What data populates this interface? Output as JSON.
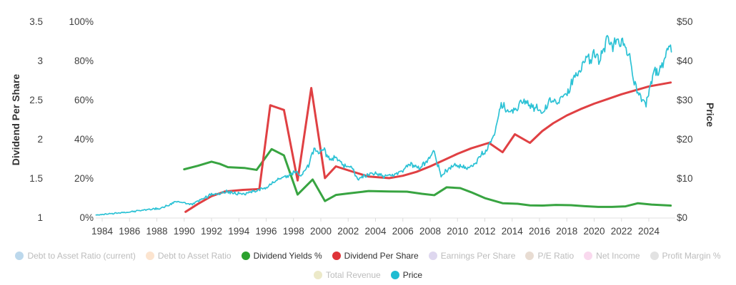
{
  "colors": {
    "background": "#ffffff",
    "axis_line": "#e0e0e0",
    "tick_mark": "#dcdcdc",
    "tick_text": "#3f3f3f",
    "axis_title_text": "#333333",
    "legend_active_text": "#303030",
    "legend_inactive_text": "#bcbcbc",
    "dividend_yields": "#38a441",
    "dividend_per_share": "#e04043",
    "price": "#2cc2d5"
  },
  "chart_data": {
    "type": "line",
    "title": "",
    "grid": "off",
    "x_axis": {
      "range": [
        1983.55,
        2025.75
      ],
      "tick_years": [
        1984,
        1986,
        1988,
        1990,
        1992,
        1994,
        1996,
        1998,
        2000,
        2002,
        2004,
        2006,
        2008,
        2010,
        2012,
        2014,
        2016,
        2018,
        2020,
        2022,
        2024
      ]
    },
    "y_axis_dividend": {
      "title": "Dividend Per Share",
      "side": "left",
      "range": [
        1,
        3.5
      ],
      "tick_values": [
        1,
        1.5,
        2,
        2.5,
        3,
        3.5
      ],
      "tick_labels": [
        "1",
        "1.5",
        "2",
        "2.5",
        "3",
        "3.5"
      ]
    },
    "y_axis_percent": {
      "title": "",
      "side": "left",
      "range": [
        0,
        100
      ],
      "tick_values": [
        0,
        20,
        40,
        60,
        80,
        100
      ],
      "tick_labels": [
        "0%",
        "20%",
        "40%",
        "60%",
        "80%",
        "100%"
      ]
    },
    "y_axis_price": {
      "title": "Price",
      "side": "right",
      "range": [
        0,
        50
      ],
      "tick_values": [
        0,
        10,
        20,
        30,
        40,
        50
      ],
      "tick_labels": [
        "$0",
        "$10",
        "$20",
        "$30",
        "$40",
        "$50"
      ]
    },
    "series": [
      {
        "name": "Dividend Yields %",
        "axis": "percent",
        "color": "#38a441",
        "width": 3,
        "noisy": false,
        "points": [
          [
            1990,
            24.5
          ],
          [
            1991,
            26.3
          ],
          [
            1992,
            28.4
          ],
          [
            1992.6,
            27.3
          ],
          [
            1993.2,
            25.6
          ],
          [
            1994.4,
            25.2
          ],
          [
            1995.3,
            24.2
          ],
          [
            1996.4,
            34.8
          ],
          [
            1997.3,
            31.6
          ],
          [
            1998.3,
            11.6
          ],
          [
            1999.4,
            19.3
          ],
          [
            2000.3,
            8.3
          ],
          [
            2001.1,
            11.4
          ],
          [
            2002,
            12.2
          ],
          [
            2003.5,
            13.4
          ],
          [
            2005,
            13.2
          ],
          [
            2006.3,
            13.1
          ],
          [
            2007.4,
            12.0
          ],
          [
            2008.3,
            11.3
          ],
          [
            2009.2,
            15.3
          ],
          [
            2010.2,
            14.9
          ],
          [
            2011,
            12.8
          ],
          [
            2012,
            9.8
          ],
          [
            2013.3,
            7.2
          ],
          [
            2014.4,
            6.9
          ],
          [
            2015.3,
            6.1
          ],
          [
            2016.2,
            6.0
          ],
          [
            2017.2,
            6.3
          ],
          [
            2018.3,
            6.2
          ],
          [
            2019.3,
            5.7
          ],
          [
            2020.3,
            5.3
          ],
          [
            2021.3,
            5.3
          ],
          [
            2022.3,
            5.6
          ],
          [
            2023.2,
            7.2
          ],
          [
            2024.2,
            6.5
          ],
          [
            2025.6,
            6.0
          ]
        ]
      },
      {
        "name": "Dividend Per Share",
        "axis": "dividend",
        "color": "#e04043",
        "width": 3,
        "noisy": false,
        "points": [
          [
            1990.1,
            1.07
          ],
          [
            1991,
            1.17
          ],
          [
            1992,
            1.27
          ],
          [
            1993,
            1.33
          ],
          [
            1994.3,
            1.35
          ],
          [
            1995.5,
            1.36
          ],
          [
            1996.3,
            2.43
          ],
          [
            1997.3,
            2.37
          ],
          [
            1998.3,
            1.47
          ],
          [
            1999.3,
            2.65
          ],
          [
            2000.3,
            1.5
          ],
          [
            2001.1,
            1.65
          ],
          [
            2002,
            1.6
          ],
          [
            2003.5,
            1.52
          ],
          [
            2005,
            1.5
          ],
          [
            2006,
            1.53
          ],
          [
            2007,
            1.58
          ],
          [
            2008,
            1.65
          ],
          [
            2009,
            1.73
          ],
          [
            2010,
            1.81
          ],
          [
            2011,
            1.88
          ],
          [
            2012.3,
            1.95
          ],
          [
            2013.3,
            1.83
          ],
          [
            2014.2,
            2.06
          ],
          [
            2015.3,
            1.95
          ],
          [
            2016.2,
            2.1
          ],
          [
            2017,
            2.2
          ],
          [
            2018,
            2.3
          ],
          [
            2019,
            2.38
          ],
          [
            2020,
            2.45
          ],
          [
            2021,
            2.51
          ],
          [
            2022,
            2.57
          ],
          [
            2023,
            2.62
          ],
          [
            2024,
            2.67
          ],
          [
            2025.6,
            2.72
          ]
        ]
      },
      {
        "name": "Price",
        "axis": "price",
        "color": "#2cc2d5",
        "width": 1.7,
        "noisy": true,
        "points": [
          [
            1983.55,
            0.6
          ],
          [
            1984,
            0.7
          ],
          [
            1985,
            1.0
          ],
          [
            1986,
            1.35
          ],
          [
            1987,
            1.9
          ],
          [
            1987.6,
            2.1
          ],
          [
            1988.2,
            2.3
          ],
          [
            1988.8,
            3.0
          ],
          [
            1989.4,
            4.0
          ],
          [
            1990,
            3.7
          ],
          [
            1990.6,
            3.3
          ],
          [
            1991.2,
            4.5
          ],
          [
            1992,
            5.8
          ],
          [
            1992.6,
            6.2
          ],
          [
            1993.1,
            6.6
          ],
          [
            1993.7,
            6.1
          ],
          [
            1994.3,
            5.9
          ],
          [
            1995,
            6.6
          ],
          [
            1995.8,
            7.3
          ],
          [
            1996.4,
            8.5
          ],
          [
            1997,
            9.8
          ],
          [
            1997.6,
            10.8
          ],
          [
            1998.2,
            11.6
          ],
          [
            1998.6,
            10.4
          ],
          [
            1999.1,
            13.2
          ],
          [
            1999.5,
            17.0
          ],
          [
            1999.9,
            16.4
          ],
          [
            2000.2,
            17.2
          ],
          [
            2000.7,
            14.6
          ],
          [
            2001.1,
            15.3
          ],
          [
            2001.7,
            13.2
          ],
          [
            2002.2,
            12.9
          ],
          [
            2002.7,
            9.7
          ],
          [
            2003.2,
            10.8
          ],
          [
            2004,
            11.2
          ],
          [
            2004.6,
            10.4
          ],
          [
            2005.3,
            10.8
          ],
          [
            2006,
            12.2
          ],
          [
            2006.6,
            13.6
          ],
          [
            2007.2,
            12.6
          ],
          [
            2007.9,
            14.8
          ],
          [
            2008.3,
            16.8
          ],
          [
            2008.8,
            10.6
          ],
          [
            2009.3,
            12.2
          ],
          [
            2010,
            13.4
          ],
          [
            2010.7,
            12.6
          ],
          [
            2011.2,
            13.4
          ],
          [
            2011.8,
            16.2
          ],
          [
            2012.2,
            17.6
          ],
          [
            2012.7,
            21.4
          ],
          [
            2013.2,
            28.8
          ],
          [
            2013.8,
            26.8
          ],
          [
            2014.5,
            28.4
          ],
          [
            2015,
            29.6
          ],
          [
            2015.6,
            28.0
          ],
          [
            2016.2,
            26.9
          ],
          [
            2016.7,
            29.4
          ],
          [
            2017.3,
            29.8
          ],
          [
            2017.9,
            31.0
          ],
          [
            2018.4,
            34.4
          ],
          [
            2019,
            38.2
          ],
          [
            2019.6,
            40.6
          ],
          [
            2020.1,
            41.8
          ],
          [
            2020.4,
            39.8
          ],
          [
            2020.9,
            45.2
          ],
          [
            2021.3,
            43.2
          ],
          [
            2021.7,
            45.4
          ],
          [
            2022.2,
            44.0
          ],
          [
            2022.6,
            40.6
          ],
          [
            2023,
            34.5
          ],
          [
            2023.4,
            30.4
          ],
          [
            2023.8,
            28.6
          ],
          [
            2024.1,
            33.4
          ],
          [
            2024.4,
            38.2
          ],
          [
            2024.7,
            36.4
          ],
          [
            2025.1,
            40.2
          ],
          [
            2025.4,
            43.4
          ],
          [
            2025.65,
            42.2
          ]
        ]
      }
    ]
  },
  "legend": {
    "rows": [
      [
        {
          "label": "Debt to Asset Ratio (current)",
          "color": "#bcd8ec",
          "active": false
        },
        {
          "label": "Debt to Asset Ratio",
          "color": "#fce4cf",
          "active": false
        },
        {
          "label": "Dividend Yields %",
          "color": "#2ba12e",
          "active": true
        },
        {
          "label": "Dividend Per Share",
          "color": "#df3338",
          "active": true
        },
        {
          "label": "Earnings Per Share",
          "color": "#ded7ef",
          "active": false
        },
        {
          "label": "P/E Ratio",
          "color": "#e8dcd2",
          "active": false
        },
        {
          "label": "Net Income",
          "color": "#f9d9ee",
          "active": false
        },
        {
          "label": "Profit Margin %",
          "color": "#e2e2e2",
          "active": false
        }
      ],
      [
        {
          "label": "Total Revenue",
          "color": "#ece9c8",
          "active": false
        },
        {
          "label": "Price",
          "color": "#1fbcd2",
          "active": true
        }
      ]
    ]
  }
}
